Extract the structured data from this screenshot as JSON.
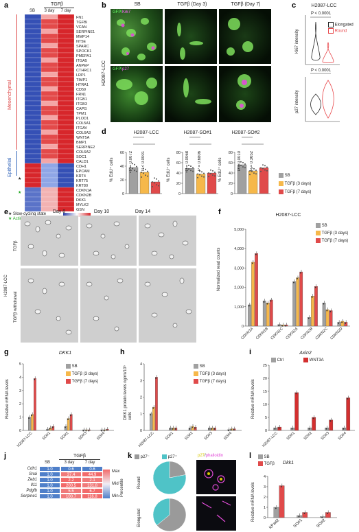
{
  "panel_letters": [
    "a",
    "b",
    "c",
    "d",
    "e",
    "f",
    "g",
    "h",
    "i",
    "j",
    "k",
    "l"
  ],
  "panel_a": {
    "group_header": "TGFβ",
    "columns": [
      "SB",
      "3 day",
      "7 day"
    ],
    "genes": [
      "FN1",
      "TGFBI",
      "VCAN",
      "SERPINE1",
      "MMP14",
      "NT5E",
      "SPARC",
      "SPOCK1",
      "PMEPA1",
      "ITGA5",
      "ANPEP",
      "CTHRC1",
      "LRP1",
      "TIMP1",
      "HTRA1",
      "CD59",
      "FRN1",
      "ITGB1",
      "ITGB3",
      "CAPG",
      "TPM1",
      "PLOD1",
      "COL5A1",
      "ITGAV",
      "COL6A3",
      "WNT5A",
      "BMP1",
      "SERPINE2",
      "COL6A2",
      "SOC1",
      "CALD1",
      "CDH1",
      "EPCAM",
      "KRT4",
      "KRT75",
      "KRT80",
      "CDKN1A",
      "CDKN2B",
      "DKK1",
      "MYLK2",
      "GSN"
    ],
    "groups": [
      "Mesenchymal",
      "Epithelial"
    ],
    "legend_items": [
      "Slow-cycling state",
      "Actin cytoskeleton"
    ],
    "scale_ticks": [
      "−1",
      "0",
      "1"
    ]
  },
  "panel_b": {
    "column_titles": [
      "SB",
      "TGFβ (Day 3)",
      "TGFβ (Day 7)"
    ],
    "row_label": "H2087-LCC",
    "row1_stain": "GFP",
    "row1_stain2": "Ki67",
    "row2_stain": "GFP",
    "row2_stain2": "p27"
  },
  "panel_c": {
    "title": "H2087-LCC",
    "pvalue_top": "P < 0.0001",
    "pvalue_bottom": "P < 0.0001",
    "ylabel_top": "Ki67 intensity",
    "ylabel_bottom": "p27 intensity",
    "legend": [
      "Elongated",
      "Round"
    ],
    "colors": {
      "elongated": "#222222",
      "round": "#e8474b"
    }
  },
  "panel_d": {
    "ylabel": "% EdU⁺ cells",
    "legend": [
      "SB",
      "TGFβ (3 days)",
      "TGFβ (7 days)"
    ],
    "colors": {
      "sb": "#a0a0a0",
      "d3": "#f6b84a",
      "d7": "#e04a4a"
    },
    "charts": [
      {
        "title": "H2087-LCC",
        "pvals": [
          "P = 0.0072",
          "P < 0.0001"
        ]
      },
      {
        "title": "H2087-SO#1",
        "pvals": [
          "P = 0.0068",
          "P = 0.6806"
        ]
      },
      {
        "title": "H2087-SO#2",
        "pvals": [
          "P = 0.0010",
          "P = 0.3652"
        ]
      }
    ]
  },
  "panel_e": {
    "days": [
      "Day 8",
      "Day 10",
      "Day 14"
    ],
    "rows": [
      "TGFβ",
      "TGFβ withdrawal"
    ],
    "side_label": "H2087-LCC"
  },
  "panel_f": {
    "title": "H2087-LCC",
    "ylabel": "Normalized read counts",
    "legend": [
      "SB",
      "TGFβ (3 days)",
      "TGFβ (7 days)"
    ],
    "categories": [
      "CDKN1A",
      "CDKN1B",
      "CDKN1C",
      "CDKN2A",
      "CDKN2B",
      "CDKN2C",
      "CDKN2D"
    ]
  },
  "panel_g": {
    "title": "DKK1",
    "ylabel": "Relative mRNA levels",
    "legend": [
      "SB",
      "TGFβ (3 days)",
      "TGFβ (7 days)"
    ],
    "categories": [
      "H2087-LCC",
      "SO#1",
      "SO#2",
      "SO#3",
      "SO#4"
    ]
  },
  "panel_h": {
    "ylabel": "DKK1 protein levels ng/ml/10⁶ cells",
    "legend": [
      "SB",
      "TGFβ (3 days)",
      "TGFβ (7 days)"
    ],
    "categories": [
      "H2087-LCC",
      "SO#1",
      "SO#2",
      "SO#3",
      "SO#4"
    ]
  },
  "panel_i": {
    "title": "Axin2",
    "ylabel": "Relative mRNA levels",
    "legend": [
      "Ctrl",
      "WNT3A"
    ],
    "colors": {
      "ctrl": "#a0a0a0",
      "wnt": "#d32f2f"
    },
    "categories": [
      "H2087-LCC",
      "SO#1",
      "SO#2",
      "SO#3",
      "SO#4"
    ]
  },
  "panel_j": {
    "group_header": "TGFβ",
    "columns": [
      "SB",
      "3 day",
      "7 day"
    ],
    "rows": [
      {
        "gene": "Cdh1",
        "values": [
          "1.0",
          "0.6",
          "0.6"
        ]
      },
      {
        "gene": "Snai",
        "values": [
          "1.0",
          "37.4",
          "44.9"
        ]
      },
      {
        "gene": "Zeb1",
        "values": [
          "1.0",
          "2.2",
          "2.1"
        ]
      },
      {
        "gene": "Il11",
        "values": [
          "1.0",
          "200.5",
          "131.8"
        ]
      },
      {
        "gene": "Pdgfb",
        "values": [
          "1.0",
          "5.5",
          "6.7"
        ]
      },
      {
        "gene": "Serpine1",
        "values": [
          "1.0",
          "100.7",
          "116.8"
        ]
      }
    ],
    "percentile_label": "Percentile",
    "percentile_levels": [
      "Max",
      "Mid",
      "Min"
    ]
  },
  "panel_k": {
    "legend": [
      "p27⁻",
      "p27⁺"
    ],
    "rows": [
      "Round",
      "Elongated"
    ],
    "image_title_a": "p27",
    "image_title_b": "phalloidin"
  },
  "panel_l": {
    "title": "Dkk1",
    "ylabel": "Relative mRNA levels",
    "legend": [
      "SB",
      "TGFβ"
    ],
    "categories": [
      "KPad2",
      "SO#1",
      "SO#2"
    ]
  },
  "chart_data": [
    {
      "id": "d1",
      "type": "bar",
      "title": "H2087-LCC",
      "ylabel": "% EdU⁺ cells",
      "categories": [
        "SB",
        "TGFβ (3 days)",
        "TGFβ (7 days)"
      ],
      "values": [
        38,
        31,
        17
      ],
      "ylim": [
        0,
        60
      ],
      "yticks": [
        0,
        20,
        40,
        60
      ]
    },
    {
      "id": "d2",
      "type": "bar",
      "title": "H2087-SO#1",
      "ylabel": "% EdU⁺ cells",
      "categories": [
        "SB",
        "TGFβ (3 days)",
        "TGFβ (7 days)"
      ],
      "values": [
        49,
        38,
        40
      ],
      "ylim": [
        0,
        80
      ],
      "yticks": [
        0,
        20,
        40,
        60,
        80
      ]
    },
    {
      "id": "d3",
      "type": "bar",
      "title": "H2087-SO#2",
      "ylabel": "% EdU⁺ cells",
      "categories": [
        "SB",
        "TGFβ (3 days)",
        "TGFβ (7 days)"
      ],
      "values": [
        56,
        44,
        50
      ],
      "ylim": [
        0,
        80
      ],
      "yticks": [
        0,
        20,
        40,
        60,
        80
      ]
    },
    {
      "id": "f",
      "type": "bar",
      "title": "H2087-LCC",
      "ylabel": "Normalized read counts",
      "categories": [
        "CDKN1A",
        "CDKN1B",
        "CDKN1C",
        "CDKN2A",
        "CDKN2B",
        "CDKN2C",
        "CDKN2D"
      ],
      "series": [
        {
          "name": "SB",
          "values": [
            1100,
            1300,
            80,
            2300,
            450,
            1200,
            200
          ]
        },
        {
          "name": "TGFβ (3 days)",
          "values": [
            3300,
            1200,
            60,
            2500,
            1550,
            850,
            250
          ]
        },
        {
          "name": "TGFβ (7 days)",
          "values": [
            3750,
            1350,
            60,
            2800,
            2050,
            800,
            200
          ]
        }
      ],
      "ylim": [
        0,
        5000
      ],
      "yticks": [
        0,
        1000,
        2000,
        3000,
        4000,
        5000
      ]
    },
    {
      "id": "g",
      "type": "bar",
      "title": "DKK1",
      "ylabel": "Relative mRNA levels",
      "categories": [
        "H2087-LCC",
        "SO#1",
        "SO#2",
        "SO#3",
        "SO#4"
      ],
      "series": [
        {
          "name": "SB",
          "values": [
            1.0,
            0.1,
            0.3,
            0.05,
            0.05
          ]
        },
        {
          "name": "TGFβ (3 days)",
          "values": [
            1.2,
            0.2,
            0.9,
            0.05,
            0.05
          ]
        },
        {
          "name": "TGFβ (7 days)",
          "values": [
            3.9,
            0.3,
            1.2,
            0.05,
            0.1
          ]
        }
      ],
      "ylim": [
        0,
        5
      ],
      "yticks": [
        0,
        1,
        2,
        3,
        4,
        5
      ]
    },
    {
      "id": "h",
      "type": "bar",
      "title": "",
      "ylabel": "DKK1 protein levels ng/ml/10⁶ cells",
      "categories": [
        "H2087-LCC",
        "SO#1",
        "SO#2",
        "SO#3",
        "SO#4"
      ],
      "series": [
        {
          "name": "SB",
          "values": [
            1.0,
            0.15,
            0.15,
            0.15,
            0.05
          ]
        },
        {
          "name": "TGFβ (3 days)",
          "values": [
            1.4,
            0.15,
            0.25,
            0.15,
            0.1
          ]
        },
        {
          "name": "TGFβ (7 days)",
          "values": [
            3.2,
            0.15,
            0.2,
            0.15,
            0.1
          ]
        }
      ],
      "ylim": [
        0,
        4
      ],
      "yticks": [
        0,
        1,
        2,
        3,
        4
      ]
    },
    {
      "id": "i",
      "type": "bar",
      "title": "Axin2",
      "ylabel": "Relative mRNA levels",
      "categories": [
        "H2087-LCC",
        "SO#1",
        "SO#2",
        "SO#3",
        "SO#4"
      ],
      "series": [
        {
          "name": "Ctrl",
          "values": [
            1.0,
            1.0,
            1.0,
            1.0,
            1.0
          ]
        },
        {
          "name": "WNT3A",
          "values": [
            1.3,
            14.5,
            5.0,
            4.0,
            12.5
          ]
        }
      ],
      "ylim": [
        0,
        25
      ],
      "yticks": [
        0,
        5,
        10,
        15,
        20,
        25
      ]
    },
    {
      "id": "k",
      "type": "pie",
      "title": "",
      "pies": [
        {
          "row": "Round",
          "slices": [
            {
              "name": "p27⁻",
              "value": 22
            },
            {
              "name": "p27⁺",
              "value": 78
            }
          ]
        },
        {
          "row": "Elongated",
          "slices": [
            {
              "name": "p27⁻",
              "value": 64
            },
            {
              "name": "p27⁺",
              "value": 36
            }
          ]
        }
      ]
    },
    {
      "id": "l",
      "type": "bar",
      "title": "Dkk1",
      "ylabel": "Relative mRNA levels",
      "categories": [
        "KPad2",
        "SO#1",
        "SO#2"
      ],
      "series": [
        {
          "name": "SB",
          "values": [
            1.0,
            0.2,
            0.1
          ]
        },
        {
          "name": "TGFβ",
          "values": [
            3.1,
            0.5,
            0.5
          ]
        }
      ],
      "ylim": [
        0,
        4
      ],
      "yticks": [
        0,
        1,
        2,
        3,
        4
      ]
    }
  ]
}
